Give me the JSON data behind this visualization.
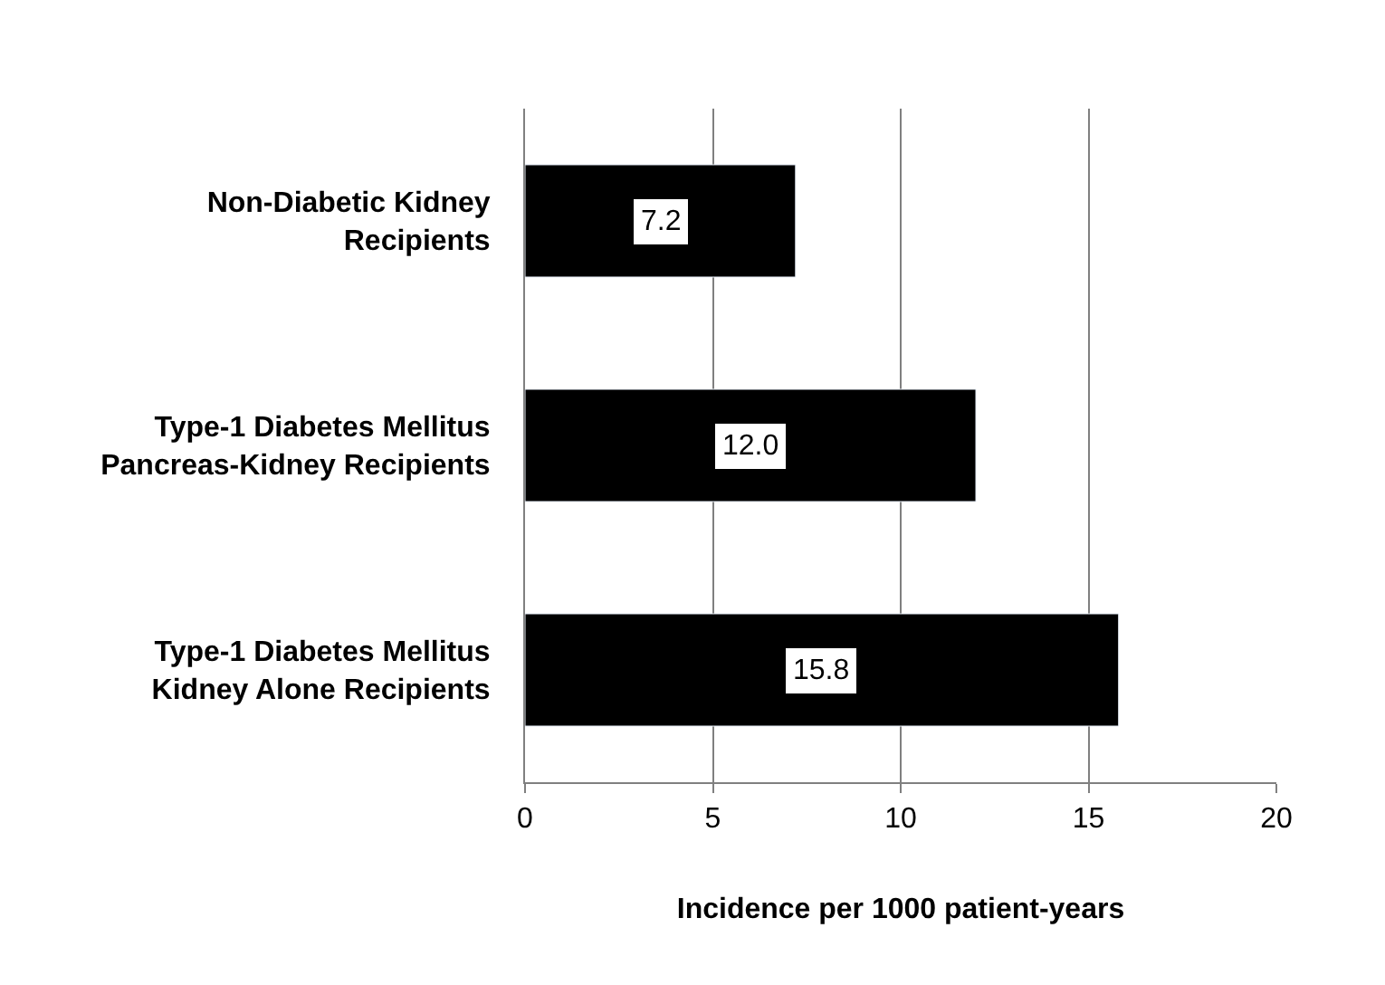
{
  "chart_data": {
    "type": "bar",
    "orientation": "horizontal",
    "categories": [
      "Non-Diabetic Kidney\nRecipients",
      "Type-1 Diabetes Mellitus\nPancreas-Kidney Recipients",
      "Type-1 Diabetes Mellitus\nKidney Alone Recipients"
    ],
    "values": [
      7.2,
      12.0,
      15.8
    ],
    "value_labels": [
      "7.2",
      "12.0",
      "15.8"
    ],
    "color": "#000000",
    "xlabel": "Incidence per 1000 patient-years",
    "xlim": [
      0,
      20
    ],
    "xticks": [
      0,
      5,
      10,
      15,
      20
    ],
    "grid": "x"
  }
}
